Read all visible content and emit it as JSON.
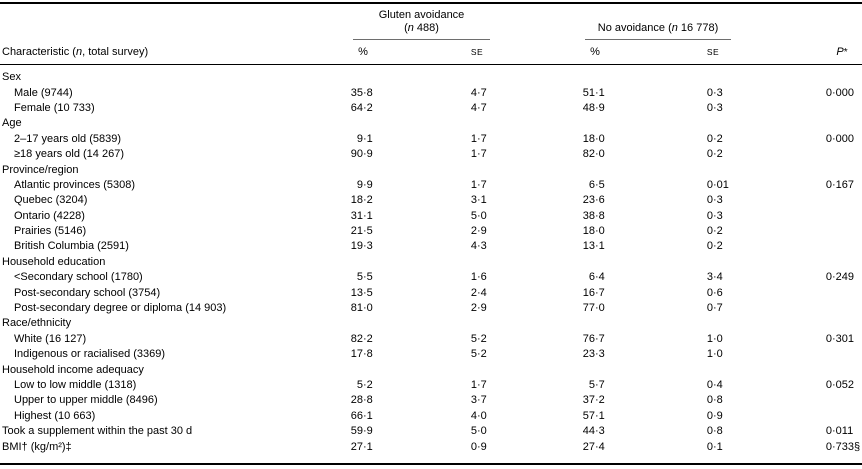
{
  "table": {
    "header": {
      "characteristic": {
        "pre": "Characteristic (",
        "n": "n",
        "post": ", total survey)"
      },
      "gluten": {
        "title": "Gluten avoidance",
        "sub_open": "(",
        "sub_n": "n",
        "sub_rest": " 488)",
        "pct": "%",
        "se": "SE"
      },
      "no_avoidance": {
        "pre": "No avoidance (",
        "n": "n",
        "rest": " 16 778)",
        "pct": "%",
        "se": "SE"
      },
      "p": {
        "label": "P",
        "star": "*"
      }
    },
    "rows": [
      {
        "label": "Sex",
        "type": "group"
      },
      {
        "label": "Male (9744)",
        "type": "item",
        "values": [
          "35·8",
          "4·7",
          "51·1",
          "0·3"
        ],
        "p": "0·000"
      },
      {
        "label": "Female (10 733)",
        "type": "item",
        "values": [
          "64·2",
          "4·7",
          "48·9",
          "0·3"
        ],
        "p": ""
      },
      {
        "label": "Age",
        "type": "group"
      },
      {
        "label": "2–17 years old (5839)",
        "type": "item",
        "values": [
          "9·1",
          "1·7",
          "18·0",
          "0·2"
        ],
        "p": "0·000"
      },
      {
        "label": "≥18 years old (14 267)",
        "type": "item",
        "values": [
          "90·9",
          "1·7",
          "82·0",
          "0·2"
        ],
        "p": ""
      },
      {
        "label": "Province/region",
        "type": "group"
      },
      {
        "label": "Atlantic provinces (5308)",
        "type": "item",
        "values": [
          "9·9",
          "1·7",
          "6·5",
          "0·01"
        ],
        "p": "0·167"
      },
      {
        "label": "Quebec (3204)",
        "type": "item",
        "values": [
          "18·2",
          "3·1",
          "23·6",
          "0·3"
        ],
        "p": ""
      },
      {
        "label": "Ontario (4228)",
        "type": "item",
        "values": [
          "31·1",
          "5·0",
          "38·8",
          "0·3"
        ],
        "p": ""
      },
      {
        "label": "Prairies (5146)",
        "type": "item",
        "values": [
          "21·5",
          "2·9",
          "18·0",
          "0·2"
        ],
        "p": ""
      },
      {
        "label": "British Columbia (2591)",
        "type": "item",
        "values": [
          "19·3",
          "4·3",
          "13·1",
          "0·2"
        ],
        "p": ""
      },
      {
        "label": "Household education",
        "type": "group"
      },
      {
        "label": "<Secondary school (1780)",
        "type": "item",
        "values": [
          "5·5",
          "1·6",
          "6·4",
          "3·4"
        ],
        "p": "0·249"
      },
      {
        "label": "Post-secondary school (3754)",
        "type": "item",
        "values": [
          "13·5",
          "2·4",
          "16·7",
          "0·6"
        ],
        "p": ""
      },
      {
        "label": "Post-secondary degree or diploma (14 903)",
        "type": "item",
        "values": [
          "81·0",
          "2·9",
          "77·0",
          "0·7"
        ],
        "p": ""
      },
      {
        "label": "Race/ethnicity",
        "type": "group"
      },
      {
        "label": "White (16 127)",
        "type": "item",
        "values": [
          "82·2",
          "5·2",
          "76·7",
          "1·0"
        ],
        "p": "0·301"
      },
      {
        "label": "Indigenous or racialised (3369)",
        "type": "item",
        "values": [
          "17·8",
          "5·2",
          "23·3",
          "1·0"
        ],
        "p": ""
      },
      {
        "label": "Household income adequacy",
        "type": "group"
      },
      {
        "label": "Low to low middle (1318)",
        "type": "item",
        "values": [
          "5·2",
          "1·7",
          "5·7",
          "0·4"
        ],
        "p": "0·052"
      },
      {
        "label": "Upper to upper middle (8496)",
        "type": "item",
        "values": [
          "28·8",
          "3·7",
          "37·2",
          "0·8"
        ],
        "p": ""
      },
      {
        "label": "Highest (10 663)",
        "type": "item",
        "values": [
          "66·1",
          "4·0",
          "57·1",
          "0·9"
        ],
        "p": ""
      },
      {
        "label": "Took a supplement within the past 30 d",
        "type": "flat",
        "values": [
          "59·9",
          "5·0",
          "44·3",
          "0·8"
        ],
        "p": "0·011"
      },
      {
        "label": "BMI† (kg/m²)‡",
        "type": "flat",
        "values": [
          "27·1",
          "0·9",
          "27·4",
          "0·1"
        ],
        "p": "0·733§"
      }
    ]
  }
}
